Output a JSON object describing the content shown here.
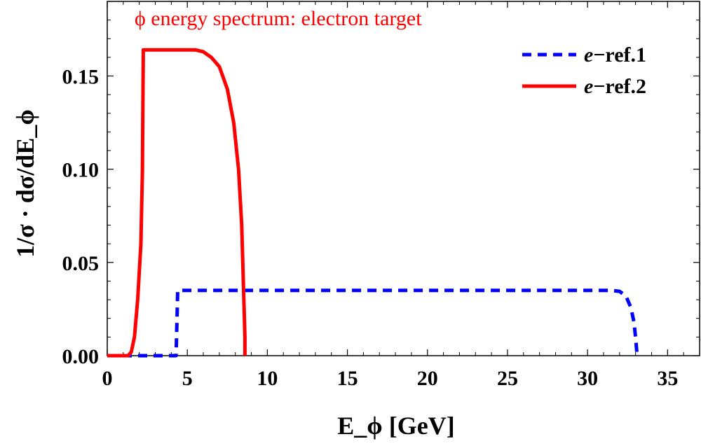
{
  "chart_data": {
    "type": "line",
    "title": "ϕ energy spectrum: electron target",
    "title_color": "#ff0000",
    "xlabel": "E_ϕ [GeV]",
    "ylabel": "1/σ · dσ/dE_ϕ",
    "xlim": [
      0,
      37
    ],
    "ylim": [
      0,
      0.19
    ],
    "x_ticks": [
      0,
      5,
      10,
      15,
      20,
      25,
      30,
      35
    ],
    "x_tick_labels": [
      "0",
      "5",
      "10",
      "15",
      "20",
      "25",
      "30",
      "35"
    ],
    "y_ticks": [
      0,
      0.05,
      0.1,
      0.15
    ],
    "y_tick_labels": [
      "0.00",
      "0.05",
      "0.10",
      "0.15"
    ],
    "legend_position": "top-right",
    "series": [
      {
        "name": "e−ref.1",
        "legend_prefix": "e",
        "legend_suffix": "−ref.1",
        "color": "#0000ff",
        "style": "dashed",
        "x": [
          0,
          4.0,
          4.3,
          4.4,
          31.5,
          32.0,
          32.4,
          32.7,
          32.9,
          33.0,
          33.1
        ],
        "y": [
          0,
          0,
          0,
          0.035,
          0.035,
          0.0345,
          0.032,
          0.026,
          0.018,
          0.01,
          0
        ]
      },
      {
        "name": "e−ref.2",
        "legend_prefix": "e",
        "legend_suffix": "−ref.2",
        "color": "#ff0000",
        "style": "solid",
        "x": [
          0,
          1.3,
          1.5,
          1.7,
          1.9,
          2.1,
          2.2,
          2.25,
          5.5,
          6.0,
          6.5,
          7.0,
          7.5,
          7.9,
          8.2,
          8.4,
          8.5,
          8.6,
          8.6
        ],
        "y": [
          0,
          0,
          0.002,
          0.01,
          0.03,
          0.06,
          0.1,
          0.164,
          0.164,
          0.163,
          0.16,
          0.155,
          0.143,
          0.125,
          0.1,
          0.07,
          0.04,
          0.01,
          0
        ]
      }
    ]
  }
}
